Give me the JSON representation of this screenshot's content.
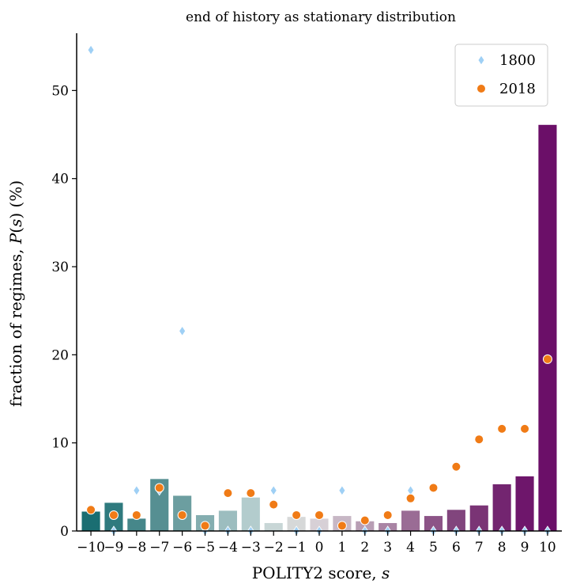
{
  "chart_data": {
    "type": "bar",
    "title": "end of history as stationary distribution",
    "xlabel": "POLITY2 score, ",
    "xlabel_var": "s",
    "ylabel_prefix": "fraction of regimes, ",
    "ylabel_var_p": "P",
    "ylabel_var_s": "s",
    "ylabel_suffix": " (%)",
    "categories": [
      -10,
      -9,
      -8,
      -7,
      -6,
      -5,
      -4,
      -3,
      -2,
      -1,
      0,
      1,
      2,
      3,
      4,
      5,
      6,
      7,
      8,
      9,
      10
    ],
    "tick_labels": [
      "−10",
      "−9",
      "−8",
      "−7",
      "−6",
      "−5",
      "−4",
      "−3",
      "−2",
      "−1",
      "0",
      "1",
      "2",
      "3",
      "4",
      "5",
      "6",
      "7",
      "8",
      "9",
      "10"
    ],
    "values": [
      2.2,
      3.2,
      1.4,
      5.9,
      4.0,
      1.8,
      2.3,
      3.8,
      0.9,
      1.6,
      1.4,
      1.7,
      1.1,
      0.9,
      2.3,
      1.7,
      2.4,
      2.9,
      5.3,
      6.2,
      46.1
    ],
    "bar_colors": [
      "#1a6e72",
      "#2f7a7e",
      "#46878a",
      "#568f92",
      "#6c9ea0",
      "#84aeb0",
      "#9cbdbf",
      "#b3cccd",
      "#c8d6d6",
      "#d6d8d8",
      "#d7d0d6",
      "#c7b7c5",
      "#b89eb4",
      "#a984a4",
      "#9a6c95",
      "#8c5487",
      "#81457d",
      "#7a3475",
      "#732570",
      "#6e166b",
      "#6b0f68"
    ],
    "series": [
      {
        "name": "1800",
        "marker": "diamond",
        "color": "#9fd0f5",
        "values": [
          54.6,
          0,
          4.6,
          4.6,
          22.7,
          0,
          0,
          0,
          4.6,
          0,
          0,
          4.6,
          0,
          0,
          4.6,
          0,
          0,
          0,
          0,
          0,
          0
        ]
      },
      {
        "name": "2018",
        "marker": "circle",
        "color": "#f07b16",
        "values": [
          2.4,
          1.8,
          1.8,
          4.9,
          1.8,
          0.6,
          4.3,
          4.3,
          3.0,
          1.8,
          1.8,
          0.6,
          1.2,
          1.8,
          3.7,
          4.9,
          7.3,
          10.4,
          11.6,
          11.6,
          19.5
        ]
      }
    ],
    "yticks": [
      0,
      10,
      20,
      30,
      40,
      50
    ],
    "ylim": [
      0,
      56.5
    ],
    "legend_position": "top-right",
    "grid": false
  }
}
